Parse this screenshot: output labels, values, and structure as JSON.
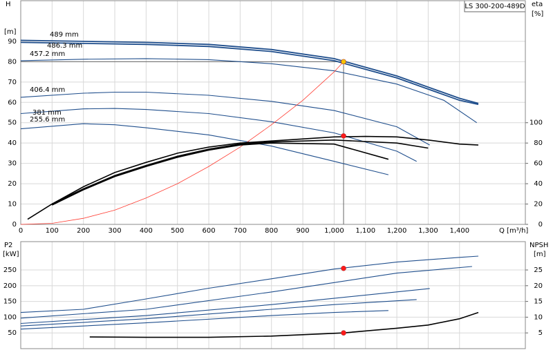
{
  "chart_data": [
    {
      "type": "line",
      "title": "LS 300-200-489D",
      "ylabel": "H",
      "yunit": "[m]",
      "y2label": "eta",
      "y2unit": "[%]",
      "xlabel": "Q [m³/h]",
      "xlim": [
        0,
        1610
      ],
      "ylim": [
        0,
        110
      ],
      "y2lim": [
        0,
        220
      ],
      "grid": true,
      "xticks": [
        0,
        100,
        200,
        300,
        400,
        500,
        600,
        700,
        800,
        900,
        {
          "value": 1000,
          "label": "1,000"
        },
        {
          "value": 1100,
          "label": "1,100"
        },
        {
          "value": 1200,
          "label": "1,200"
        },
        {
          "value": 1300,
          "label": "1,300"
        },
        {
          "value": 1400,
          "label": "1,400"
        }
      ],
      "yticks": [
        0,
        10,
        20,
        30,
        40,
        50,
        60,
        70,
        80,
        90
      ],
      "y2ticks": [
        0,
        20,
        40,
        60,
        80,
        100
      ],
      "series": [
        {
          "label": "489 mm",
          "color": "#1f4e8c",
          "x": [
            0,
            200,
            400,
            600,
            800,
            1000,
            1200,
            1400,
            1460
          ],
          "values": [
            90.5,
            90,
            89.5,
            88.5,
            86,
            81.5,
            73,
            62,
            59.5
          ]
        },
        {
          "label": "486.3 mm",
          "color": "#1f4e8c",
          "x": [
            0,
            200,
            400,
            600,
            800,
            1000,
            1200,
            1400,
            1460
          ],
          "values": [
            89.5,
            89,
            88.5,
            87.5,
            85,
            80.5,
            72,
            61,
            59
          ]
        },
        {
          "label": "457.2 mm",
          "color": "#1f4e8c",
          "x": [
            0,
            200,
            400,
            600,
            800,
            1000,
            1200,
            1350,
            1455
          ],
          "values": [
            80.5,
            81.2,
            81.5,
            81,
            79,
            75.5,
            69,
            61,
            50
          ]
        },
        {
          "label": "406.4 mm",
          "color": "#1f4e8c",
          "x": [
            0,
            200,
            300,
            400,
            600,
            800,
            1000,
            1200,
            1305
          ],
          "values": [
            62.5,
            64.5,
            65,
            65,
            63.5,
            60.5,
            56,
            48,
            39
          ]
        },
        {
          "label": "381 mm",
          "color": "#1f4e8c",
          "x": [
            0,
            200,
            300,
            400,
            600,
            800,
            1000,
            1200,
            1263
          ],
          "values": [
            54.5,
            56.8,
            57,
            56.5,
            54.5,
            50.5,
            45,
            36,
            31
          ]
        },
        {
          "label": "255.6 mm",
          "color": "#1f4e8c",
          "x": [
            0,
            200,
            300,
            400,
            600,
            800,
            1000,
            1173
          ],
          "values": [
            47,
            49.5,
            49,
            47.5,
            44,
            38.5,
            31,
            24.4
          ]
        },
        {
          "color": "#ff3b30",
          "x": [
            0,
            100,
            200,
            300,
            400,
            500,
            600,
            700,
            800,
            900,
            1000,
            1030
          ],
          "values": [
            0,
            0.5,
            3,
            7,
            13,
            20,
            28.5,
            38,
            49,
            61,
            75,
            80
          ]
        },
        {
          "color": "#000000",
          "axis": "y2",
          "x": [
            22,
            100,
            200,
            300,
            400,
            500,
            600,
            700,
            800,
            1000,
            1100,
            1200,
            1300,
            1400,
            1460
          ],
          "values": [
            5,
            20,
            37,
            51,
            61,
            70,
            76,
            80,
            82,
            86,
            86.5,
            86,
            83,
            79,
            78
          ]
        },
        {
          "color": "#000000",
          "axis": "y2",
          "x": [
            100,
            200,
            300,
            400,
            500,
            600,
            700,
            800,
            1000,
            1200,
            1300
          ],
          "values": [
            20,
            35,
            48,
            58,
            67,
            74,
            79,
            81,
            83,
            80,
            75
          ]
        },
        {
          "color": "#000000",
          "axis": "y2",
          "x": [
            100,
            200,
            300,
            400,
            500,
            600,
            700,
            800,
            1000,
            1173
          ],
          "values": [
            19,
            34,
            47,
            57,
            66,
            73,
            78,
            80,
            79,
            64
          ]
        }
      ],
      "points": [
        {
          "x": 1030,
          "y": 80,
          "color": "#f5c400"
        },
        {
          "x": 1030,
          "y": 87,
          "axis": "y2",
          "color": "#ff1a1a"
        }
      ]
    },
    {
      "type": "line",
      "ylabel": "P2",
      "yunit": "[kW]",
      "y2label": "NPSH",
      "y2unit": "[m]",
      "xlim": [
        0,
        1610
      ],
      "ylim": [
        0,
        340
      ],
      "y2lim": [
        0,
        34
      ],
      "grid": true,
      "yticks": [
        50,
        100,
        150,
        200,
        250
      ],
      "y2ticks": [
        5,
        10,
        15,
        20,
        25
      ],
      "series": [
        {
          "color": "#1f4e8c",
          "x": [
            0,
            200,
            400,
            600,
            800,
            1000,
            1200,
            1400,
            1460
          ],
          "values": [
            115,
            125,
            158,
            192,
            222,
            253,
            275,
            290,
            294
          ]
        },
        {
          "color": "#1f4e8c",
          "x": [
            0,
            400,
            800,
            1000,
            1200,
            1440
          ],
          "values": [
            97,
            125,
            180,
            210,
            240,
            261
          ]
        },
        {
          "color": "#1f4e8c",
          "x": [
            0,
            400,
            800,
            1000,
            1305
          ],
          "values": [
            80,
            105,
            140,
            160,
            191
          ]
        },
        {
          "color": "#1f4e8c",
          "x": [
            0,
            400,
            800,
            1000,
            1263
          ],
          "values": [
            72,
            95,
            125,
            140,
            156
          ]
        },
        {
          "color": "#1f4e8c",
          "x": [
            0,
            400,
            800,
            1000,
            1173
          ],
          "values": [
            62,
            82,
            105,
            115,
            121
          ]
        },
        {
          "color": "#000000",
          "axis": "y2",
          "x": [
            220,
            400,
            600,
            800,
            1030,
            1200,
            1300,
            1400,
            1460
          ],
          "values": [
            3.7,
            3.6,
            3.6,
            4,
            5,
            6.5,
            7.5,
            9.5,
            11.5
          ]
        }
      ],
      "points": [
        {
          "x": 1030,
          "y": 255,
          "color": "#ff1a1a"
        },
        {
          "x": 1030,
          "y": 5,
          "axis": "y2",
          "color": "#ff1a1a"
        }
      ]
    }
  ]
}
